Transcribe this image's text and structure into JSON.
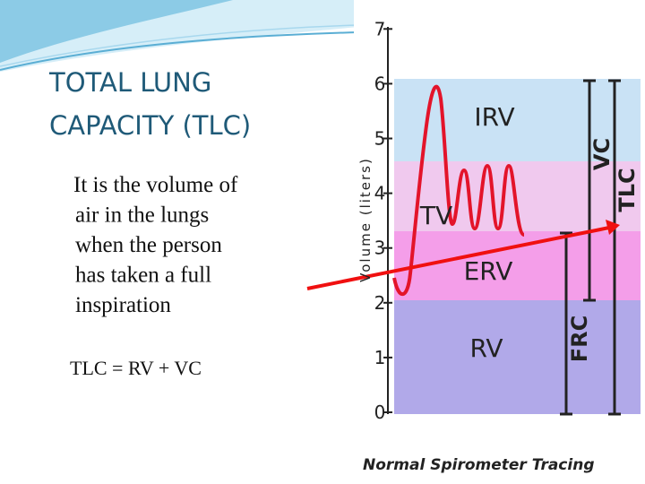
{
  "slide": {
    "title": [
      "TOTAL LUNG",
      "CAPACITY (TLC)"
    ],
    "body": [
      "It is the volume of",
      "air in the lungs",
      "when the person",
      "has taken a full",
      "inspiration"
    ],
    "formula": "TLC = RV + VC"
  },
  "figure": {
    "y_label": "Volume (liters)",
    "yticks": [
      0,
      1,
      2,
      3,
      4,
      5,
      6,
      7
    ],
    "regions": [
      "IRV",
      "TV",
      "ERV",
      "RV"
    ],
    "brackets": [
      "VC",
      "TLC",
      "FRC"
    ],
    "caption": "Normal Spirometer Tracing"
  }
}
